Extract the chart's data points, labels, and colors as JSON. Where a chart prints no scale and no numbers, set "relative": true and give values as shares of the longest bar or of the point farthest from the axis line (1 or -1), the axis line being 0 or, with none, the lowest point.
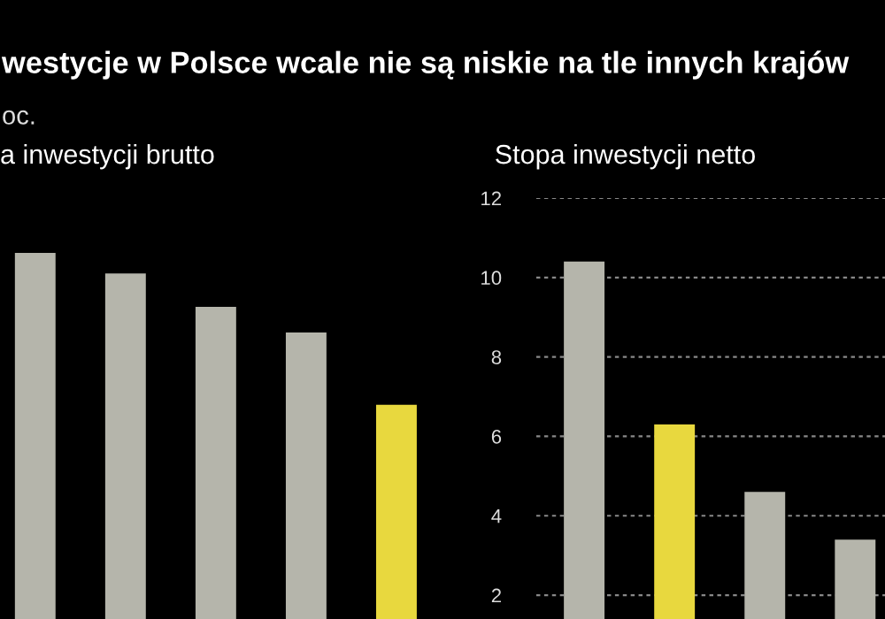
{
  "chart_data": [
    {
      "type": "bar",
      "title": "a inwestycji brutto",
      "annotations": [
        "westycje w Polsce wcale nie są niskie na tle innych krajów",
        "oc."
      ],
      "relative": true,
      "tick_labels": false,
      "categories": [
        null,
        null,
        null,
        null,
        null
      ],
      "values": [
        1,
        0.944,
        0.853,
        0.783,
        0.585
      ],
      "colors": [
        "#b5b5ab",
        "#b5b5ab",
        "#b5b5ab",
        "#b5b5ab",
        "#e8d83e"
      ]
    },
    {
      "type": "bar",
      "title": "Stopa inwestycji netto",
      "tick_labels": "y",
      "grid": "y",
      "categories": [
        null,
        null,
        null,
        null
      ],
      "values": [
        10.4,
        6.3,
        4.6,
        3.4
      ],
      "colors": [
        "#b5b5ab",
        "#e8d83e",
        "#b5b5ab",
        "#b5b5ab"
      ],
      "ylim": [
        1.4,
        12
      ],
      "yticks": [
        2,
        4,
        6,
        8,
        10,
        12
      ]
    }
  ]
}
